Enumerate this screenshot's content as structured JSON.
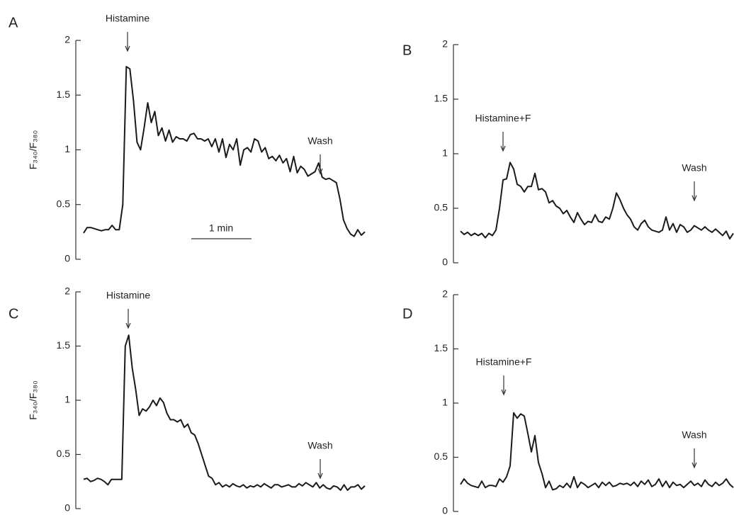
{
  "chart_data": [
    {
      "type": "line",
      "panel": "A",
      "y_label": "F₃₄₀/F₃₈₀",
      "annotations": [
        "Histamine",
        "Wash"
      ],
      "scale_bar": "1 min",
      "color": "#1a1a1a",
      "ylim": [
        0,
        2
      ],
      "yticks": [
        0,
        0.5,
        1,
        1.5,
        2
      ],
      "values": [
        0.24,
        0.29,
        0.29,
        0.28,
        0.27,
        0.26,
        0.27,
        0.27,
        0.31,
        0.27,
        0.27,
        0.5,
        1.76,
        1.74,
        1.45,
        1.07,
        1.0,
        1.2,
        1.43,
        1.25,
        1.35,
        1.13,
        1.2,
        1.08,
        1.18,
        1.07,
        1.12,
        1.1,
        1.1,
        1.08,
        1.14,
        1.15,
        1.1,
        1.1,
        1.08,
        1.1,
        1.03,
        1.1,
        0.98,
        1.1,
        0.93,
        1.05,
        1.0,
        1.1,
        0.86,
        1.0,
        1.02,
        0.98,
        1.1,
        1.08,
        0.98,
        1.02,
        0.92,
        0.94,
        0.9,
        0.95,
        0.88,
        0.92,
        0.8,
        0.94,
        0.79,
        0.85,
        0.82,
        0.76,
        0.78,
        0.8,
        0.88,
        0.75,
        0.73,
        0.74,
        0.72,
        0.7,
        0.55,
        0.36,
        0.28,
        0.23,
        0.21,
        0.27,
        0.22,
        0.25
      ]
    },
    {
      "type": "line",
      "panel": "B",
      "annotations": [
        "Histamine+F",
        "Wash"
      ],
      "color": "#1a1a1a",
      "ylim": [
        0,
        2
      ],
      "yticks": [
        0,
        0.5,
        1,
        1.5,
        2
      ],
      "values": [
        0.29,
        0.26,
        0.28,
        0.25,
        0.27,
        0.25,
        0.27,
        0.23,
        0.27,
        0.25,
        0.3,
        0.5,
        0.76,
        0.77,
        0.92,
        0.86,
        0.72,
        0.7,
        0.65,
        0.7,
        0.7,
        0.82,
        0.67,
        0.68,
        0.65,
        0.55,
        0.57,
        0.52,
        0.5,
        0.45,
        0.48,
        0.42,
        0.37,
        0.46,
        0.4,
        0.35,
        0.38,
        0.37,
        0.44,
        0.38,
        0.37,
        0.42,
        0.4,
        0.5,
        0.64,
        0.58,
        0.5,
        0.44,
        0.4,
        0.33,
        0.3,
        0.36,
        0.39,
        0.33,
        0.3,
        0.29,
        0.28,
        0.3,
        0.42,
        0.3,
        0.36,
        0.28,
        0.35,
        0.33,
        0.28,
        0.3,
        0.34,
        0.32,
        0.3,
        0.33,
        0.3,
        0.28,
        0.31,
        0.28,
        0.25,
        0.29,
        0.22,
        0.27
      ]
    },
    {
      "type": "line",
      "panel": "C",
      "y_label": "F₃₄₀/F₃₈₀",
      "annotations": [
        "Histamine",
        "Wash"
      ],
      "color": "#1a1a1a",
      "ylim": [
        0,
        2
      ],
      "yticks": [
        0,
        0.5,
        1,
        1.5,
        2
      ],
      "values": [
        0.27,
        0.28,
        0.25,
        0.26,
        0.28,
        0.27,
        0.25,
        0.22,
        0.27,
        0.27,
        0.27,
        0.27,
        1.5,
        1.6,
        1.3,
        1.1,
        0.86,
        0.92,
        0.9,
        0.94,
        1.0,
        0.95,
        1.02,
        0.98,
        0.88,
        0.82,
        0.82,
        0.8,
        0.82,
        0.75,
        0.78,
        0.7,
        0.68,
        0.6,
        0.5,
        0.4,
        0.3,
        0.28,
        0.22,
        0.24,
        0.2,
        0.22,
        0.2,
        0.23,
        0.21,
        0.2,
        0.22,
        0.19,
        0.21,
        0.2,
        0.22,
        0.2,
        0.23,
        0.21,
        0.19,
        0.22,
        0.22,
        0.2,
        0.21,
        0.22,
        0.2,
        0.2,
        0.23,
        0.21,
        0.24,
        0.22,
        0.2,
        0.24,
        0.19,
        0.22,
        0.19,
        0.18,
        0.21,
        0.2,
        0.17,
        0.22,
        0.17,
        0.2,
        0.2,
        0.22,
        0.18,
        0.21
      ]
    },
    {
      "type": "line",
      "panel": "D",
      "annotations": [
        "Histamine+F",
        "Wash"
      ],
      "color": "#1a1a1a",
      "ylim": [
        0,
        2
      ],
      "yticks": [
        0,
        0.5,
        1,
        1.5,
        2
      ],
      "values": [
        0.25,
        0.3,
        0.26,
        0.24,
        0.23,
        0.22,
        0.28,
        0.22,
        0.24,
        0.24,
        0.23,
        0.3,
        0.27,
        0.32,
        0.42,
        0.91,
        0.86,
        0.9,
        0.88,
        0.72,
        0.55,
        0.7,
        0.45,
        0.35,
        0.22,
        0.28,
        0.2,
        0.21,
        0.24,
        0.22,
        0.26,
        0.22,
        0.32,
        0.22,
        0.27,
        0.25,
        0.22,
        0.24,
        0.26,
        0.22,
        0.27,
        0.24,
        0.27,
        0.23,
        0.24,
        0.26,
        0.25,
        0.26,
        0.24,
        0.27,
        0.23,
        0.28,
        0.25,
        0.29,
        0.23,
        0.25,
        0.3,
        0.23,
        0.28,
        0.22,
        0.27,
        0.24,
        0.25,
        0.22,
        0.25,
        0.28,
        0.24,
        0.26,
        0.23,
        0.29,
        0.25,
        0.23,
        0.27,
        0.24,
        0.26,
        0.3,
        0.25,
        0.22
      ]
    }
  ]
}
